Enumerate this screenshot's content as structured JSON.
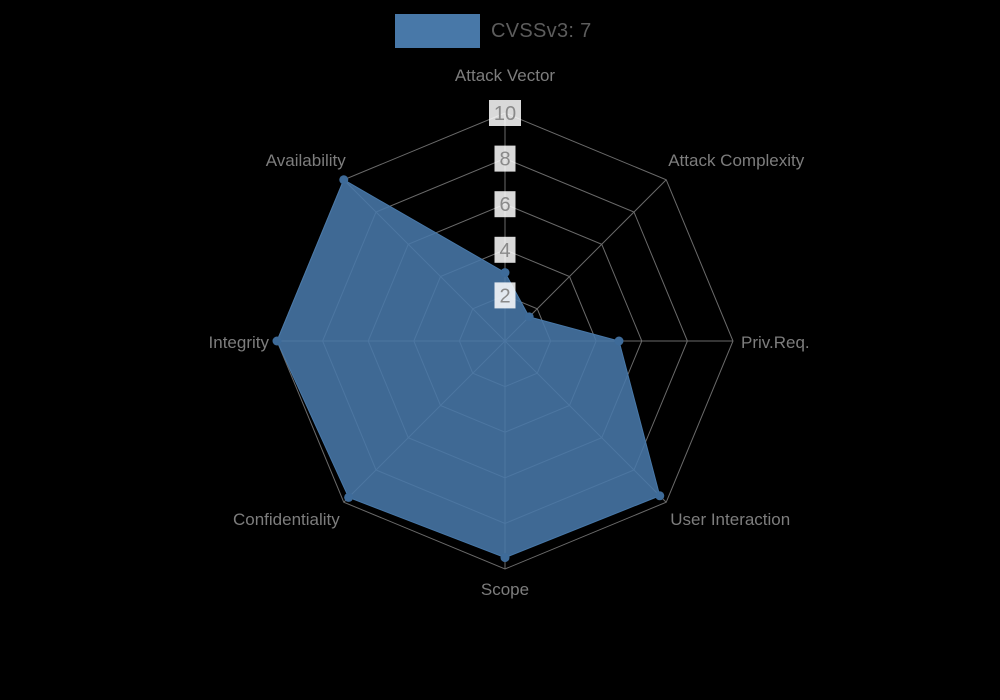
{
  "legend": {
    "label": "CVSSv3: 7",
    "color": "#4878a8"
  },
  "chart_data": {
    "type": "radar",
    "title": "CVSSv3: 7",
    "categories": [
      "Attack Vector",
      "Attack Complexity",
      "Priv.Req.",
      "User Interaction",
      "Scope",
      "Confidentiality",
      "Integrity",
      "Availability"
    ],
    "series": [
      {
        "name": "CVSSv3: 7",
        "values": [
          3,
          1.5,
          5,
          9.6,
          9.5,
          9.7,
          10,
          10
        ]
      }
    ],
    "ticks": [
      2,
      4,
      6,
      8,
      10
    ],
    "max": 10,
    "grid": true,
    "legend_position": "top-center",
    "colors": {
      "fill": "#4878a8",
      "marker": "#3e6b99",
      "grid": "#6a6a6a",
      "label": "#7d7d7d",
      "tick_text": "#8a8a8a",
      "tick_bg": "#ffffff",
      "background": "#000000",
      "legend_text": "#5c5c5c"
    }
  }
}
